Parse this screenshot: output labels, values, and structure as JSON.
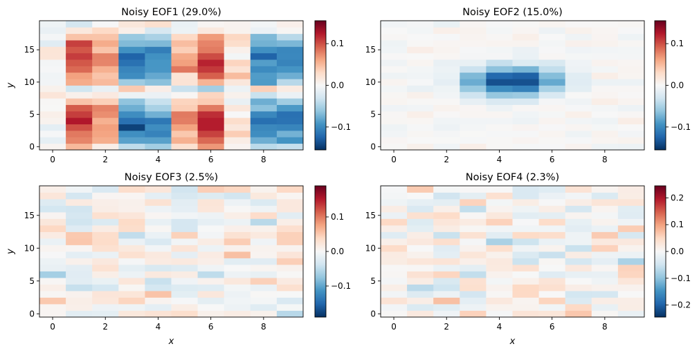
{
  "chart_data": [
    {
      "type": "heatmap",
      "title": "Noisy EOF1 (29.0%)",
      "xlabel": "",
      "ylabel": "y",
      "x_ticks": [
        "0",
        "2",
        "4",
        "6",
        "8"
      ],
      "y_ticks": [
        "0",
        "5",
        "10",
        "15"
      ],
      "grid": false,
      "colormap": "RdBu_r",
      "vmin": -0.155,
      "vmax": 0.155,
      "colorbar_ticks": [
        {
          "value": -0.1,
          "label": "−0.1"
        },
        {
          "value": 0.0,
          "label": "0.0"
        },
        {
          "value": 0.1,
          "label": "0.1"
        }
      ],
      "grid_shape": {
        "columns": 10,
        "rows": 20
      },
      "pattern": "seeded noisy EOF1 estimate"
    },
    {
      "type": "heatmap",
      "title": "Noisy EOF2 (15.0%)",
      "xlabel": "",
      "ylabel": "",
      "x_ticks": [
        "0",
        "2",
        "4",
        "6",
        "8"
      ],
      "y_ticks": [
        "0",
        "5",
        "10",
        "15"
      ],
      "grid": false,
      "colormap": "RdBu_r",
      "vmin": -0.155,
      "vmax": 0.155,
      "colorbar_ticks": [
        {
          "value": -0.1,
          "label": "−0.1"
        },
        {
          "value": 0.0,
          "label": "0.0"
        },
        {
          "value": 0.1,
          "label": "0.1"
        }
      ],
      "grid_shape": {
        "columns": 10,
        "rows": 20
      },
      "pattern": "seeded noisy EOF2 estimate"
    },
    {
      "type": "heatmap",
      "title": "Noisy EOF3 (2.5%)",
      "xlabel": "x",
      "ylabel": "y",
      "x_ticks": [
        "0",
        "2",
        "4",
        "6",
        "8"
      ],
      "y_ticks": [
        "0",
        "5",
        "10",
        "15"
      ],
      "grid": false,
      "colormap": "RdBu_r",
      "vmin": -0.19,
      "vmax": 0.19,
      "colorbar_ticks": [
        {
          "value": -0.1,
          "label": "−0.1"
        },
        {
          "value": 0.0,
          "label": "0.0"
        },
        {
          "value": 0.1,
          "label": "0.1"
        }
      ],
      "grid_shape": {
        "columns": 10,
        "rows": 20
      },
      "pattern": "seeded noisy EOF3 estimate"
    },
    {
      "type": "heatmap",
      "title": "Noisy EOF4 (2.3%)",
      "xlabel": "x",
      "ylabel": "",
      "x_ticks": [
        "0",
        "2",
        "4",
        "6",
        "8"
      ],
      "y_ticks": [
        "0",
        "5",
        "10",
        "15"
      ],
      "grid": false,
      "colormap": "RdBu_r",
      "vmin": -0.245,
      "vmax": 0.245,
      "colorbar_ticks": [
        {
          "value": -0.2,
          "label": "−0.2"
        },
        {
          "value": -0.1,
          "label": "−0.1"
        },
        {
          "value": 0.0,
          "label": "0.0"
        },
        {
          "value": 0.1,
          "label": "0.1"
        },
        {
          "value": 0.2,
          "label": "0.2"
        }
      ],
      "grid_shape": {
        "columns": 10,
        "rows": 20
      },
      "pattern": "seeded noisy EOF4 estimate"
    }
  ]
}
